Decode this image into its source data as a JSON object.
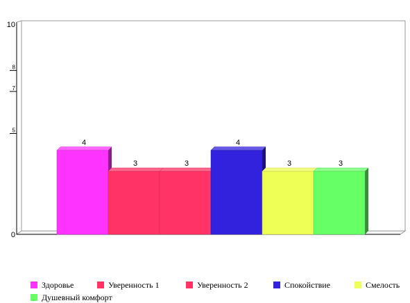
{
  "chart_data": {
    "type": "bar",
    "title": "",
    "xlabel": "",
    "ylabel": "",
    "ylim": [
      0,
      10
    ],
    "y_ticks": [
      {
        "value": 0,
        "label": "0"
      },
      {
        "value": 5,
        "label": "5"
      },
      {
        "value": 7,
        "label": "7"
      },
      {
        "value": 8,
        "label": "8"
      },
      {
        "value": 10,
        "label": "10"
      }
    ],
    "grid": false,
    "legend_position": "bottom",
    "series": [
      {
        "name": "Здоровье",
        "value": 4,
        "color": "#ff33ff"
      },
      {
        "name": "Уверенность 1",
        "value": 3,
        "color": "#ff3366"
      },
      {
        "name": "Уверенность 2",
        "value": 3,
        "color": "#ff3366"
      },
      {
        "name": "Спокойствие",
        "value": 4,
        "color": "#3322dd"
      },
      {
        "name": "Смелость",
        "value": 3,
        "color": "#eeff55"
      },
      {
        "name": "Душевный комфорт",
        "value": 3,
        "color": "#66ff66"
      }
    ],
    "data_labels": [
      "4",
      "3",
      "3",
      "4",
      "3",
      "3"
    ]
  }
}
